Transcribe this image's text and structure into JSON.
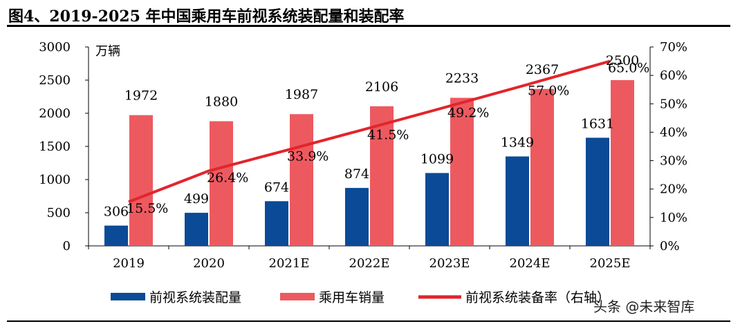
{
  "title": "图4、2019-2025 年中国乘用车前视系统装配量和装配率",
  "watermark": {
    "text": "头条 @未来智库"
  },
  "colors": {
    "bar1": "#0a4a97",
    "bar2": "#ec5a60",
    "line": "#e2252b"
  },
  "chart_data": {
    "type": "bar",
    "categories": [
      "2019",
      "2020",
      "2021E",
      "2022E",
      "2023E",
      "2024E",
      "2025E"
    ],
    "series": [
      {
        "name": "前视系统装配量",
        "type": "bar",
        "axis": "left",
        "values": [
          306,
          499,
          674,
          874,
          1099,
          1349,
          1631
        ]
      },
      {
        "name": "乘用车销量",
        "type": "bar",
        "axis": "left",
        "values": [
          1972,
          1880,
          1987,
          2106,
          2233,
          2367,
          2500
        ]
      },
      {
        "name": "前视系统装备率（右轴）",
        "type": "line",
        "axis": "right",
        "values": [
          15.5,
          26.4,
          33.9,
          41.5,
          49.2,
          57.0,
          65.0
        ],
        "labels": [
          "15.5%",
          "26.4%",
          "33.9%",
          "41.5%",
          "49.2%",
          "57.0%",
          "65.0%"
        ]
      }
    ],
    "left_axis": {
      "unit_label": "万辆",
      "ylim": [
        0,
        3000
      ],
      "ticks": [
        "0",
        "500",
        "1000",
        "1500",
        "2000",
        "2500",
        "3000"
      ]
    },
    "right_axis": {
      "ylim": [
        0,
        70
      ],
      "ticks": [
        "0%",
        "10%",
        "20%",
        "30%",
        "40%",
        "50%",
        "60%",
        "70%"
      ]
    },
    "grid": false,
    "legend": "bottom"
  }
}
